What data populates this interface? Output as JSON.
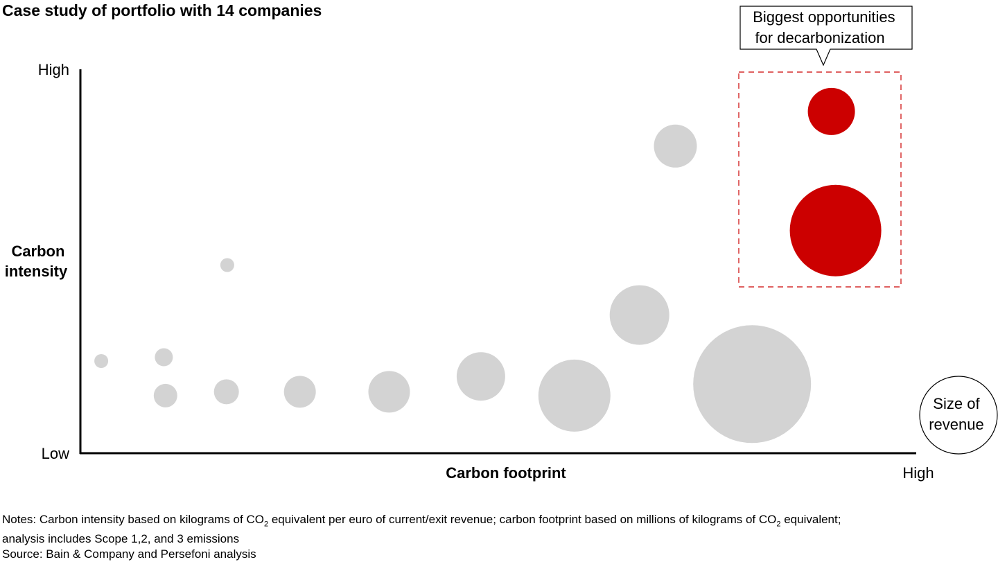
{
  "title": "Case study of portfolio with 14 companies",
  "chart_data": {
    "type": "scatter",
    "title": "Case study of portfolio with 14 companies",
    "xlabel": "Carbon footprint",
    "ylabel": [
      "Carbon",
      "intensity"
    ],
    "x_ticks": {
      "high": "High"
    },
    "y_ticks": {
      "high": "High",
      "low": "Low"
    },
    "xlim": [
      0,
      100
    ],
    "ylim": [
      0,
      100
    ],
    "bubble_legend": [
      "Size of",
      "revenue"
    ],
    "callout": [
      "Biggest opportunities",
      "for decarbonization"
    ],
    "colors": {
      "highlight": "#cc0000",
      "default": "#d3d3d3",
      "callout_border": "#cc0000"
    },
    "points": [
      {
        "x": 2.5,
        "y": 24,
        "size": 1.0,
        "highlight": false
      },
      {
        "x": 10.0,
        "y": 25,
        "size": 1.3,
        "highlight": false
      },
      {
        "x": 10.2,
        "y": 15,
        "size": 1.7,
        "highlight": false
      },
      {
        "x": 17.5,
        "y": 16,
        "size": 1.8,
        "highlight": false
      },
      {
        "x": 17.6,
        "y": 49,
        "size": 1.0,
        "highlight": false
      },
      {
        "x": 26.3,
        "y": 16,
        "size": 2.3,
        "highlight": false
      },
      {
        "x": 37.0,
        "y": 16,
        "size": 3.0,
        "highlight": false
      },
      {
        "x": 48.0,
        "y": 20,
        "size": 3.5,
        "highlight": false
      },
      {
        "x": 59.2,
        "y": 15,
        "size": 5.2,
        "highlight": false
      },
      {
        "x": 67.0,
        "y": 36,
        "size": 4.3,
        "highlight": false
      },
      {
        "x": 71.3,
        "y": 80,
        "size": 3.1,
        "highlight": false
      },
      {
        "x": 80.5,
        "y": 18,
        "size": 8.5,
        "highlight": false
      },
      {
        "x": 90.0,
        "y": 89,
        "size": 3.4,
        "highlight": true
      },
      {
        "x": 90.5,
        "y": 58,
        "size": 6.6,
        "highlight": true
      }
    ]
  },
  "notes": {
    "line1_a": "Notes: Carbon intensity based on kilograms of CO",
    "sub": "2",
    "line1_b": " equivalent per euro of current/exit revenue; carbon footprint based on millions of kilograms of CO",
    "line1_c": " equivalent;",
    "line2": "analysis includes Scope 1,2, and 3 emissions",
    "source": "Source: Bain & Company and Persefoni analysis"
  }
}
